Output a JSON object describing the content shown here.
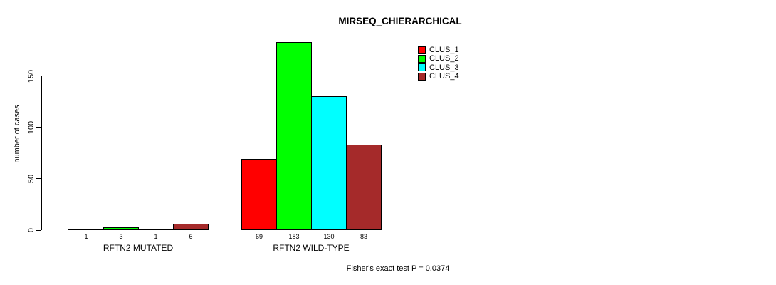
{
  "chart_data": {
    "type": "bar",
    "title": "MIRSEQ_CHIERARCHICAL",
    "ylabel": "number of cases",
    "xlabel": "",
    "yticks": [
      0,
      50,
      100,
      150
    ],
    "ylim": [
      0,
      190
    ],
    "grid": false,
    "legend_position": "top-right",
    "series": [
      {
        "name": "CLUS_1",
        "color": "#ff0000",
        "values": [
          1,
          69
        ]
      },
      {
        "name": "CLUS_2",
        "color": "#00ff00",
        "values": [
          3,
          183
        ]
      },
      {
        "name": "CLUS_3",
        "color": "#00ffff",
        "values": [
          1,
          130
        ]
      },
      {
        "name": "CLUS_4",
        "color": "#a52a2a",
        "values": [
          6,
          83
        ]
      }
    ],
    "categories": [
      "RFTN2 MUTATED",
      "RFTN2 WILD-TYPE"
    ],
    "bar_value_labels": [
      [
        1,
        3,
        1,
        6
      ],
      [
        69,
        183,
        130,
        83
      ]
    ],
    "footnote": "Fisher's exact test P = 0.0374"
  }
}
